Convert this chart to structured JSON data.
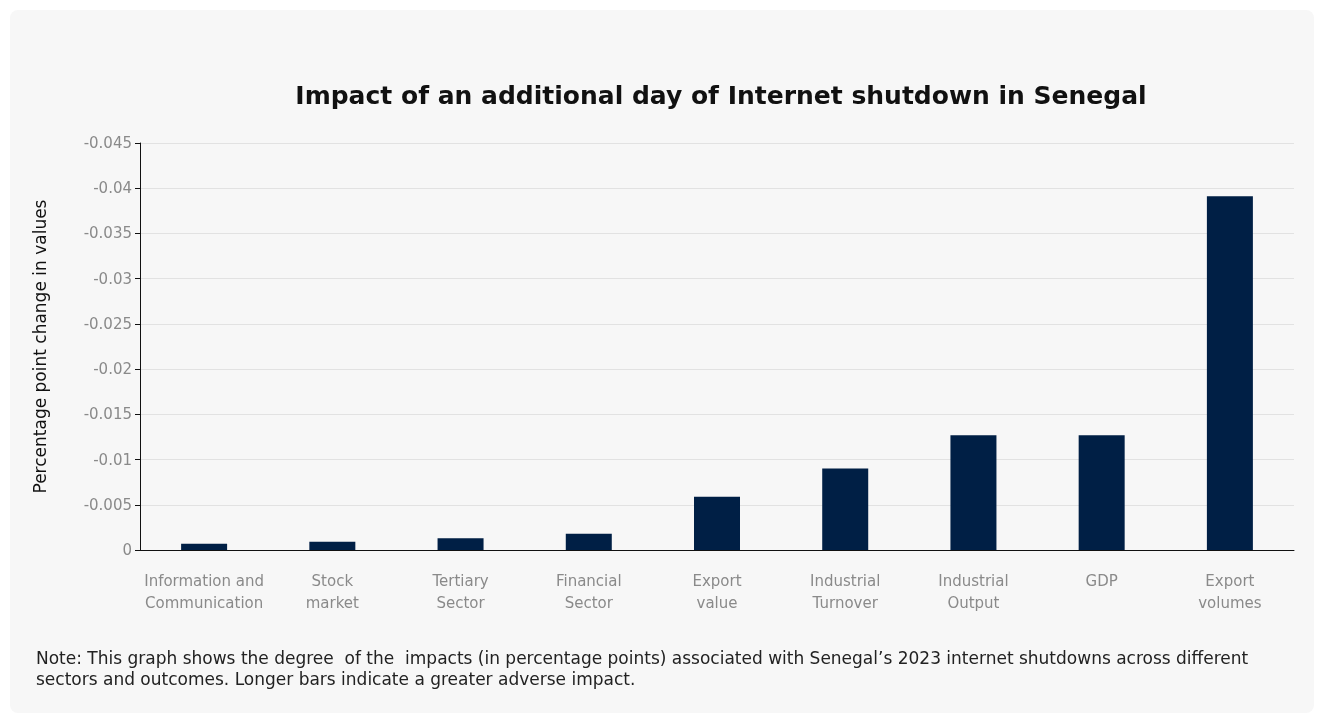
{
  "chart_data": {
    "type": "bar",
    "title": "Impact of an additional day of Internet shutdown in Senegal",
    "ylabel": "Percentage point change in values",
    "categories": [
      "Information and Communication",
      "Stock market",
      "Tertiary Sector",
      "Financial Sector",
      "Export value",
      "Industrial Turnover",
      "Industrial Output",
      "GDP",
      "Export volumes"
    ],
    "values": [
      -0.0007,
      -0.0009,
      -0.0013,
      -0.0018,
      -0.0059,
      -0.009,
      -0.0127,
      -0.0127,
      -0.0391
    ],
    "color": "#001f45",
    "ylim": [
      0,
      -0.045
    ],
    "yticks": [
      0,
      -0.005,
      -0.01,
      -0.015,
      -0.02,
      -0.025,
      -0.03,
      -0.035,
      -0.04,
      -0.045
    ],
    "grid": "y",
    "annotations": [
      "Note: This graph shows the degree  of the  impacts (in percentage points) associated with Senegal’s 2023 internet shutdowns across different sectors and outcomes. Longer bars indicate a greater adverse impact."
    ]
  }
}
